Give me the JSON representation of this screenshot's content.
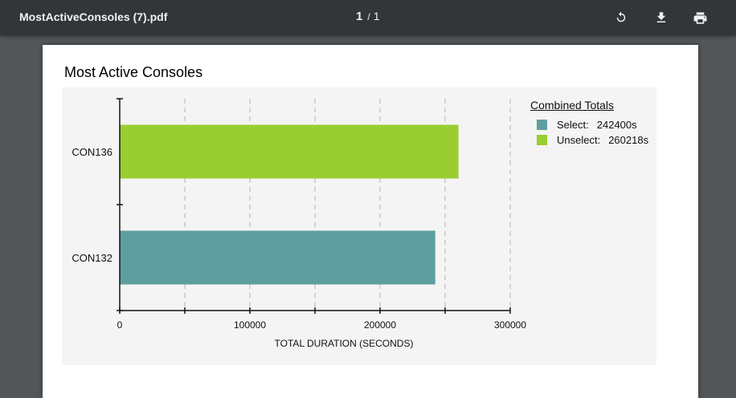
{
  "viewer": {
    "filename": "MostActiveConsoles (7).pdf",
    "page_current": "1",
    "page_separator": "/",
    "page_total": "1",
    "rotate_icon": "rotate-icon",
    "download_icon": "download-icon",
    "print_icon": "print-icon"
  },
  "report": {
    "title": "Most Active Consoles"
  },
  "legend": {
    "title": "Combined Totals",
    "items": [
      {
        "label": "Select:",
        "value": "242400s",
        "color": "#5f9ea0"
      },
      {
        "label": "Unselect:",
        "value": "260218s",
        "color": "#9acd32"
      }
    ]
  },
  "chart_data": {
    "type": "bar",
    "orientation": "horizontal",
    "categories": [
      "CON136",
      "CON132"
    ],
    "values": [
      260218,
      242400
    ],
    "colors": [
      "#9acd32",
      "#5f9ea0"
    ],
    "xlabel": "TOTAL DURATION (SECONDS)",
    "ylabel": "",
    "xlim": [
      0,
      300000
    ],
    "xticks": [
      0,
      100000,
      200000,
      300000
    ],
    "xtick_labels": [
      "0",
      "100000",
      "200000",
      "300000"
    ],
    "grid": "vertical dashed"
  }
}
